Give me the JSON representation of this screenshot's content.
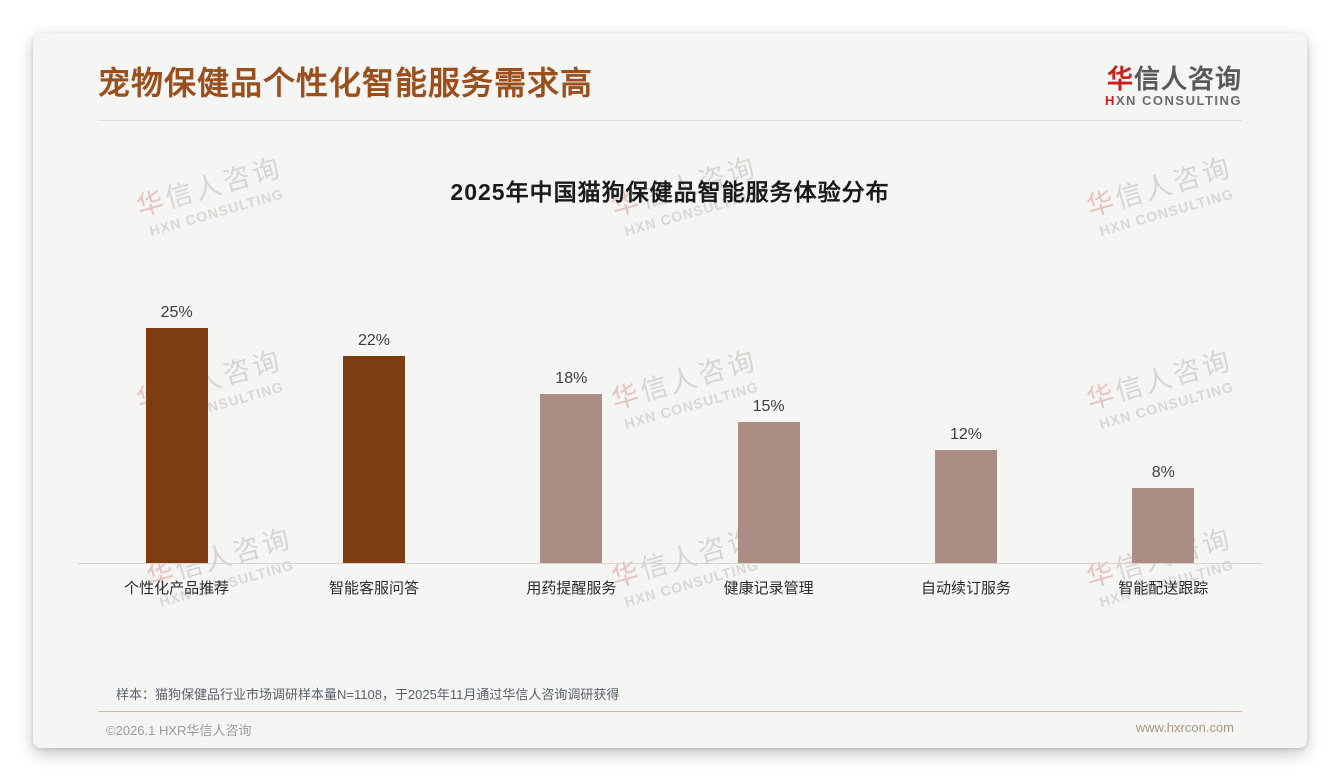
{
  "page": {
    "title": "宠物保健品个性化智能服务需求高",
    "title_color": "#9B4F1C"
  },
  "logo": {
    "cn_first": "华",
    "cn_rest": "信人咨询",
    "en_first": "H",
    "en_rest": "XN CONSULTING",
    "accent_color": "#C9201D"
  },
  "watermark": {
    "line1_first": "华",
    "line1_rest": "信人咨询",
    "line2": "HXN CONSULTING"
  },
  "chart_data": {
    "type": "bar",
    "title": "2025年中国猫狗保健品智能服务体验分布",
    "categories": [
      "个性化产品推荐",
      "智能客服问答",
      "用药提醒服务",
      "健康记录管理",
      "自动续订服务",
      "智能配送跟踪"
    ],
    "values": [
      25,
      22,
      18,
      15,
      12,
      8
    ],
    "unit": "%",
    "ylim": [
      0,
      25
    ],
    "grid": false,
    "legend": false,
    "value_labels_position": "above-bar",
    "bar_color_primary": "#7E3D11",
    "bar_color_secondary": "#AC8D84",
    "primary_count": 2,
    "value_label_color": "#3E3E3E"
  },
  "footer": {
    "note": "样本：猫狗保健品行业市场调研样本量N=1108，于2025年11月通过华信人咨询调研获得",
    "copyright": "©2026.1 HXR华信人咨询",
    "website": "www.hxrcon.com"
  }
}
